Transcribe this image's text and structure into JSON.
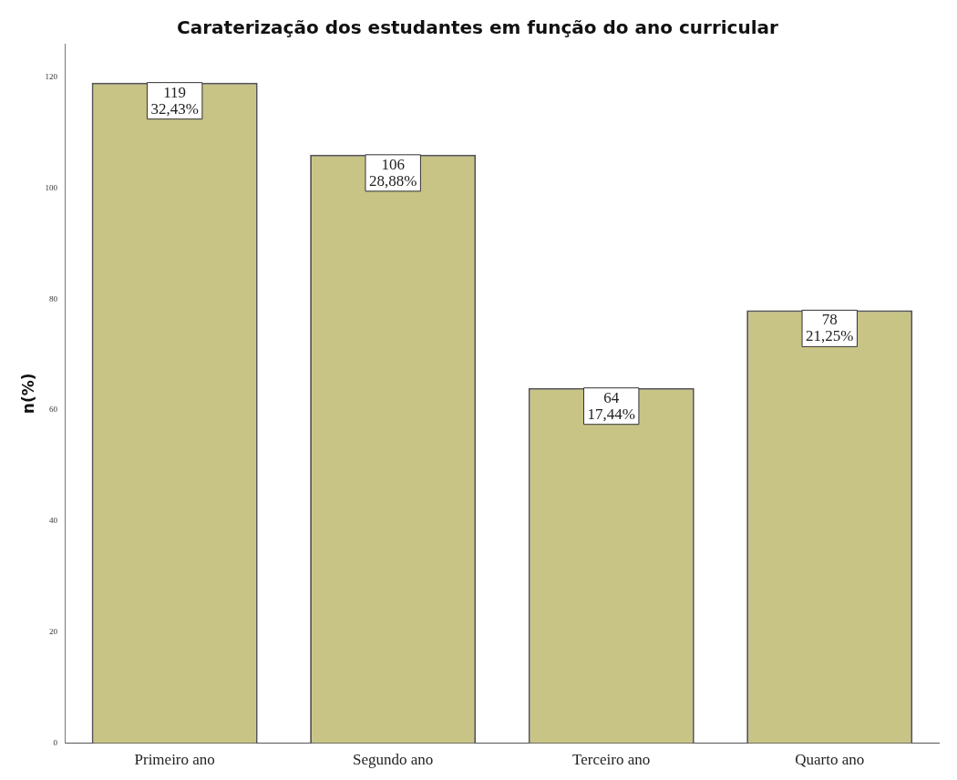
{
  "chart_data": {
    "type": "bar",
    "title": "Caraterização dos estudantes em função do ano curricular",
    "ylabel": "n(%)",
    "categories": [
      "Primeiro ano",
      "Segundo ano",
      "Terceiro ano",
      "Quarto ano"
    ],
    "values": [
      119,
      106,
      64,
      78
    ],
    "value_labels": [
      "119\n32,43%",
      "106\n28,88%",
      "64\n17,44%",
      "78\n21,25%"
    ],
    "color": "#c8c486",
    "ylim": [
      0,
      126
    ],
    "yticks": [
      0,
      20,
      40,
      60,
      80,
      100,
      120
    ],
    "grid": false,
    "legend": false
  }
}
